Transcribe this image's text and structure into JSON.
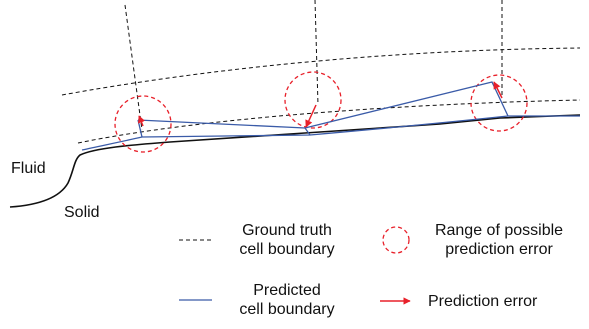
{
  "labels": {
    "fluid": "Fluid",
    "solid": "Solid"
  },
  "legend": {
    "ground_truth": {
      "line1": "Ground truth",
      "line2": "cell boundary"
    },
    "range": {
      "line1": "Range of possible",
      "line2": "prediction error"
    },
    "predicted": {
      "line1": "Predicted",
      "line2": "cell boundary"
    },
    "error": "Prediction error"
  },
  "colors": {
    "ground_truth": "#111111",
    "predicted": "#3a5ba8",
    "error": "#e8202a",
    "wall": "#111111"
  }
}
